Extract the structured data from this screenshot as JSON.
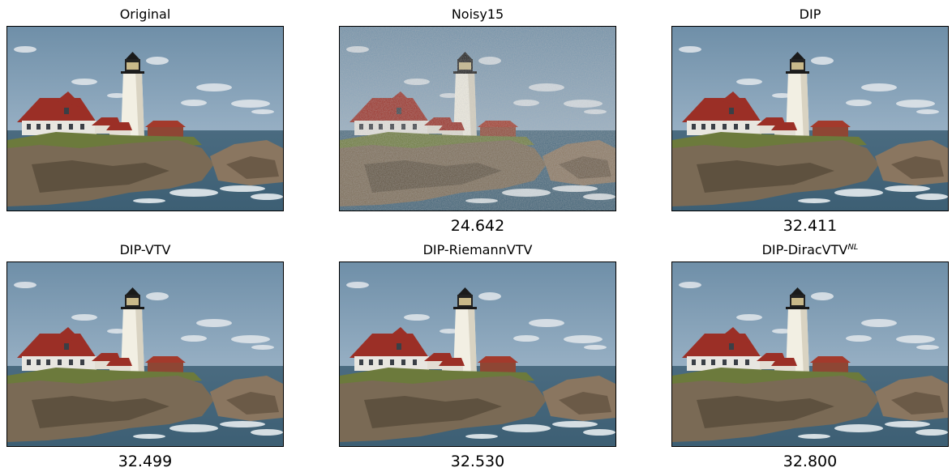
{
  "panels": [
    {
      "title": "Original",
      "title_sup": "",
      "score": "",
      "noisy": false
    },
    {
      "title": "Noisy15",
      "title_sup": "",
      "score": "24.642",
      "noisy": true
    },
    {
      "title": "DIP",
      "title_sup": "",
      "score": "32.411",
      "noisy": false
    },
    {
      "title": "DIP-VTV",
      "title_sup": "",
      "score": "32.499",
      "noisy": false
    },
    {
      "title": "DIP-RiemannVTV",
      "title_sup": "",
      "score": "32.530",
      "noisy": false
    },
    {
      "title": "DIP-DiracVTV",
      "title_sup": "NL",
      "score": "32.800",
      "noisy": false
    }
  ],
  "scene": {
    "subject": "lighthouse-on-rocky-coast",
    "colors": {
      "sky_top": "#6f8fa8",
      "sky_bottom": "#9ab2c6",
      "sea": "#3d5f74",
      "roof": "#9b2f26",
      "lighthouse": "#f2efe3",
      "rock": "#7a6a55",
      "grass": "#6c7a3c",
      "foam": "#e6ecef"
    }
  }
}
